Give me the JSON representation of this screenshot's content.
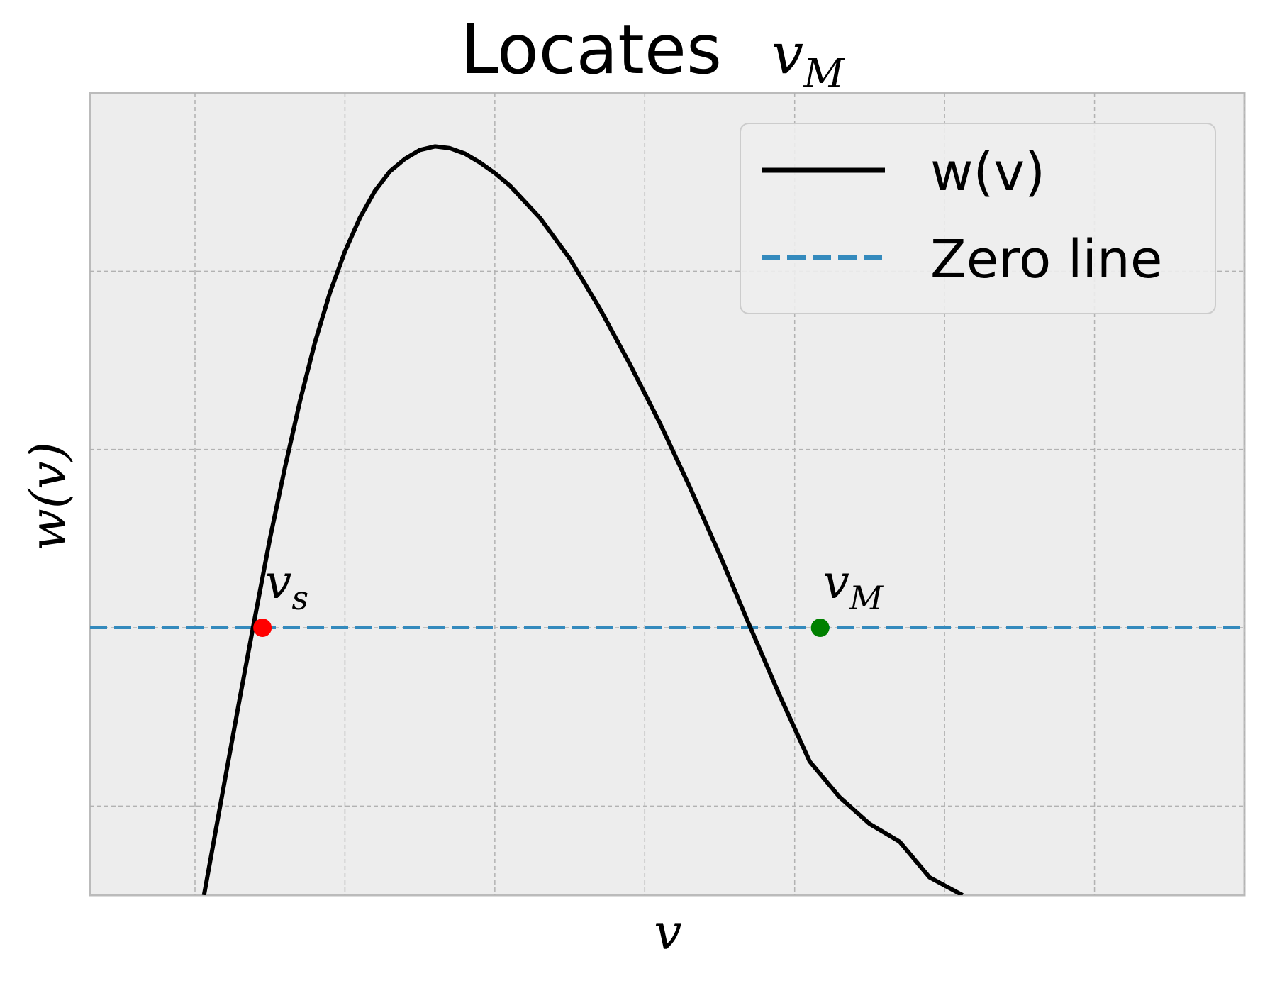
{
  "chart_data": {
    "type": "line",
    "title": {
      "prefix": "Locates ",
      "math_base": "v",
      "math_sub": "M"
    },
    "xlabel": "v",
    "ylabel": "w(v)",
    "xlim": [
      0,
      7.7
    ],
    "ylim": [
      -1.5,
      3.0
    ],
    "grid": true,
    "tick_labels_shown": false,
    "x_gridlines": [
      0.7,
      1.7,
      2.7,
      3.7,
      4.7,
      5.7,
      6.7,
      7.7
    ],
    "y_gridlines": [
      -1,
      0,
      1,
      2
    ],
    "legend": {
      "placement": "top-right",
      "entries": [
        "w(v)",
        "Zero line"
      ]
    },
    "series": [
      {
        "name": "w(v)",
        "color": "#000000",
        "style": "solid",
        "x": [
          0.76,
          0.9,
          1.0,
          1.1,
          1.2,
          1.3,
          1.4,
          1.5,
          1.6,
          1.7,
          1.8,
          1.9,
          2.0,
          2.1,
          2.2,
          2.3,
          2.4,
          2.5,
          2.6,
          2.7,
          2.8,
          3.0,
          3.2,
          3.4,
          3.6,
          3.8,
          4.0,
          4.2,
          4.4,
          4.6,
          4.8,
          5.0,
          5.2,
          5.4,
          5.6,
          5.82
        ],
        "y": [
          -1.5,
          -0.85,
          -0.39,
          0.06,
          0.5,
          0.9,
          1.27,
          1.6,
          1.88,
          2.11,
          2.3,
          2.45,
          2.56,
          2.63,
          2.68,
          2.7,
          2.69,
          2.66,
          2.61,
          2.55,
          2.48,
          2.3,
          2.07,
          1.79,
          1.48,
          1.15,
          0.79,
          0.41,
          0.01,
          -0.38,
          -0.75,
          -0.95,
          -1.1,
          -1.2,
          -1.4,
          -1.5
        ]
      },
      {
        "name": "Zero line",
        "color": "#348ABD",
        "style": "dashed",
        "y": 0
      }
    ],
    "points": [
      {
        "x": 1.15,
        "y": 0,
        "color": "#FF0000",
        "label_base": "v",
        "label_sub": "s"
      },
      {
        "x": 4.87,
        "y": 0,
        "color": "#008000",
        "label_base": "v",
        "label_sub": "M"
      }
    ]
  }
}
